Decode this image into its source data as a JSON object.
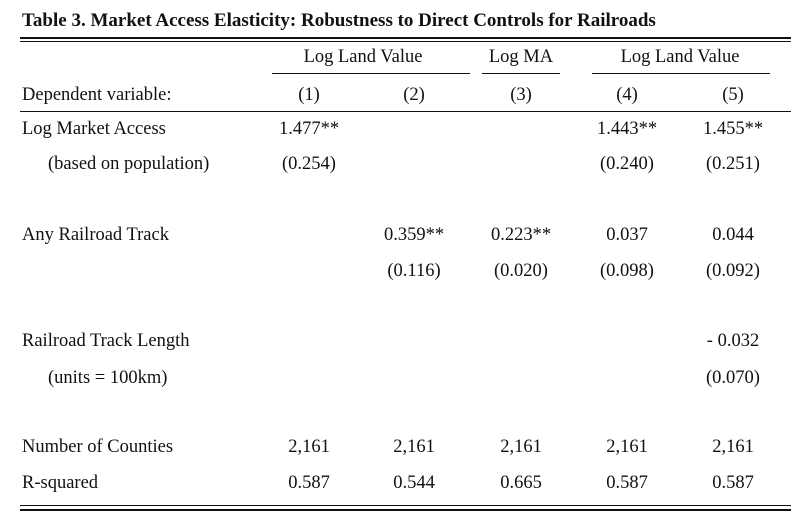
{
  "title": "Table 3.  Market Access Elasticity:  Robustness to Direct Controls for Railroads",
  "header": {
    "group_labels": [
      "Log Land Value",
      "Log MA",
      "Log Land Value"
    ],
    "dependent_variable_label": "Dependent variable:",
    "column_numbers": [
      "(1)",
      "(2)",
      "(3)",
      "(4)",
      "(5)"
    ]
  },
  "rows": [
    {
      "label": "Log Market Access",
      "values": [
        "1.477**",
        "",
        "",
        "1.443**",
        "1.455**"
      ]
    },
    {
      "label": "(based on population)",
      "values": [
        "(0.254)",
        "",
        "",
        "(0.240)",
        "(0.251)"
      ]
    },
    {
      "label": "Any Railroad Track",
      "values": [
        "",
        "0.359**",
        "0.223**",
        "0.037",
        "0.044"
      ]
    },
    {
      "label": "",
      "values": [
        "",
        "(0.116)",
        "(0.020)",
        "(0.098)",
        "(0.092)"
      ]
    },
    {
      "label": "Railroad Track Length",
      "values": [
        "",
        "",
        "",
        "",
        "- 0.032"
      ]
    },
    {
      "label": "(units = 100km)",
      "values": [
        "",
        "",
        "",
        "",
        "(0.070)"
      ]
    },
    {
      "label": "Number of Counties",
      "values": [
        "2,161",
        "2,161",
        "2,161",
        "2,161",
        "2,161"
      ]
    },
    {
      "label": "R-squared",
      "values": [
        "0.587",
        "0.544",
        "0.665",
        "0.587",
        "0.587"
      ]
    }
  ]
}
